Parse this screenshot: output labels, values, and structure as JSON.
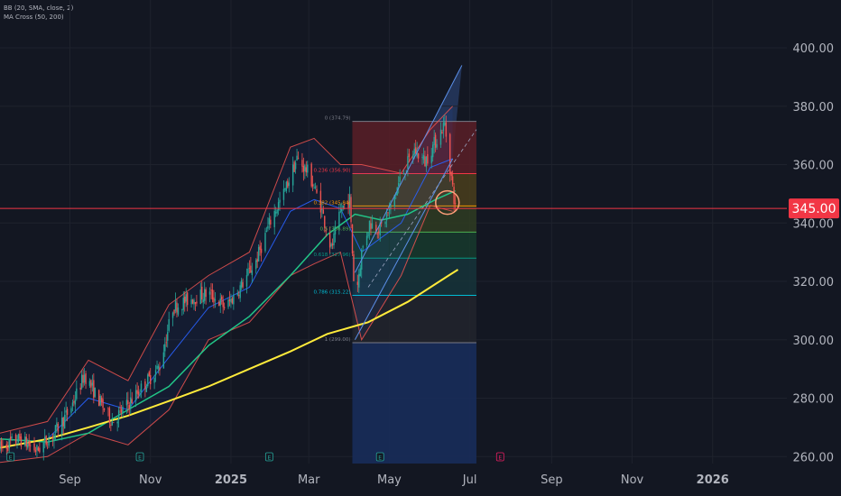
{
  "legend": {
    "line1": "BB (20, SMA, close, 2)",
    "line2": "MA Cross (50, 200)"
  },
  "chart_data": {
    "type": "candlestick",
    "title": "",
    "ylim": [
      257,
      412
    ],
    "x_range": [
      "2024-07-10",
      "2026-03-01"
    ],
    "y_ticks": [
      260,
      280,
      300,
      320,
      340,
      360,
      380,
      400
    ],
    "y_tick_labels": [
      "260.00",
      "280.00",
      "300.00",
      "320.00",
      "340.00",
      "360.00",
      "380.00",
      "400.00"
    ],
    "x_ticks": [
      {
        "date": "2024-09-01",
        "label": "Sep",
        "bold": false
      },
      {
        "date": "2024-11-01",
        "label": "Nov",
        "bold": false
      },
      {
        "date": "2025-01-01",
        "label": "2025",
        "bold": true
      },
      {
        "date": "2025-03-01",
        "label": "Mar",
        "bold": false
      },
      {
        "date": "2025-05-01",
        "label": "May",
        "bold": false
      },
      {
        "date": "2025-07-01",
        "label": "Jul",
        "bold": false
      },
      {
        "date": "2025-09-01",
        "label": "Sep",
        "bold": false
      },
      {
        "date": "2025-11-01",
        "label": "Nov",
        "bold": false
      },
      {
        "date": "2026-01-01",
        "label": "2026",
        "bold": true
      }
    ],
    "price_line": {
      "value": 345.0,
      "label": "345.00",
      "color": "#f23645"
    },
    "close_path": [
      [
        "2024-07-10",
        263
      ],
      [
        "2024-07-25",
        266
      ],
      [
        "2024-08-07",
        262
      ],
      [
        "2024-08-20",
        268
      ],
      [
        "2024-09-01",
        276
      ],
      [
        "2024-09-12",
        288
      ],
      [
        "2024-09-22",
        280
      ],
      [
        "2024-10-03",
        272
      ],
      [
        "2024-10-15",
        278
      ],
      [
        "2024-10-28",
        285
      ],
      [
        "2024-11-08",
        291
      ],
      [
        "2024-11-18",
        311
      ],
      [
        "2024-12-01",
        314
      ],
      [
        "2024-12-15",
        316
      ],
      [
        "2024-12-28",
        311
      ],
      [
        "2025-01-08",
        318
      ],
      [
        "2025-01-20",
        327
      ],
      [
        "2025-02-01",
        342
      ],
      [
        "2025-02-10",
        350
      ],
      [
        "2025-02-20",
        362
      ],
      [
        "2025-03-01",
        357
      ],
      [
        "2025-03-10",
        346
      ],
      [
        "2025-03-18",
        331
      ],
      [
        "2025-03-26",
        345
      ],
      [
        "2025-04-01",
        348
      ],
      [
        "2025-04-05",
        312
      ],
      [
        "2025-04-10",
        330
      ],
      [
        "2025-04-16",
        340
      ],
      [
        "2025-04-24",
        338
      ],
      [
        "2025-05-01",
        344
      ],
      [
        "2025-05-10",
        356
      ],
      [
        "2025-05-20",
        365
      ],
      [
        "2025-05-28",
        361
      ],
      [
        "2025-06-05",
        368
      ],
      [
        "2025-06-12",
        374
      ],
      [
        "2025-06-16",
        359
      ],
      [
        "2025-06-20",
        345
      ]
    ],
    "sma200": [
      [
        "2024-07-10",
        263
      ],
      [
        "2024-08-15",
        266
      ],
      [
        "2024-09-15",
        270
      ],
      [
        "2024-10-15",
        274
      ],
      [
        "2024-11-15",
        279
      ],
      [
        "2024-12-15",
        284
      ],
      [
        "2025-01-15",
        290
      ],
      [
        "2025-02-15",
        296
      ],
      [
        "2025-03-15",
        302
      ],
      [
        "2025-04-15",
        306
      ],
      [
        "2025-05-15",
        313
      ],
      [
        "2025-06-15",
        322
      ],
      [
        "2025-06-22",
        324
      ]
    ],
    "sma50": [
      [
        "2024-07-10",
        266
      ],
      [
        "2024-08-15",
        265
      ],
      [
        "2024-09-15",
        268
      ],
      [
        "2024-10-15",
        276
      ],
      [
        "2024-11-15",
        284
      ],
      [
        "2024-12-15",
        298
      ],
      [
        "2025-01-15",
        308
      ],
      [
        "2025-02-15",
        322
      ],
      [
        "2025-03-15",
        336
      ],
      [
        "2025-04-05",
        343
      ],
      [
        "2025-04-25",
        341
      ],
      [
        "2025-05-15",
        343
      ],
      [
        "2025-06-05",
        348
      ],
      [
        "2025-06-20",
        351
      ]
    ],
    "bb_upper": [
      [
        "2024-07-10",
        268
      ],
      [
        "2024-08-15",
        272
      ],
      [
        "2024-09-15",
        293
      ],
      [
        "2024-10-15",
        286
      ],
      [
        "2024-11-15",
        312
      ],
      [
        "2024-12-15",
        322
      ],
      [
        "2025-01-15",
        330
      ],
      [
        "2025-02-15",
        366
      ],
      [
        "2025-03-05",
        369
      ],
      [
        "2025-03-25",
        360
      ],
      [
        "2025-04-10",
        360
      ],
      [
        "2025-05-10",
        357
      ],
      [
        "2025-06-01",
        372
      ],
      [
        "2025-06-18",
        380
      ]
    ],
    "bb_lower": [
      [
        "2024-07-10",
        258
      ],
      [
        "2024-08-15",
        260
      ],
      [
        "2024-09-15",
        268
      ],
      [
        "2024-10-15",
        264
      ],
      [
        "2024-11-15",
        276
      ],
      [
        "2024-12-15",
        300
      ],
      [
        "2025-01-15",
        306
      ],
      [
        "2025-02-15",
        322
      ],
      [
        "2025-03-05",
        326
      ],
      [
        "2025-03-25",
        330
      ],
      [
        "2025-04-10",
        300
      ],
      [
        "2025-05-10",
        322
      ],
      [
        "2025-06-01",
        346
      ],
      [
        "2025-06-18",
        344
      ]
    ],
    "bb_basis": [
      [
        "2024-07-10",
        263
      ],
      [
        "2024-08-15",
        266
      ],
      [
        "2024-09-15",
        280
      ],
      [
        "2024-10-15",
        276
      ],
      [
        "2024-11-15",
        294
      ],
      [
        "2024-12-15",
        311
      ],
      [
        "2025-01-15",
        318
      ],
      [
        "2025-02-15",
        344
      ],
      [
        "2025-03-05",
        348
      ],
      [
        "2025-03-25",
        345
      ],
      [
        "2025-04-10",
        330
      ],
      [
        "2025-05-10",
        340
      ],
      [
        "2025-06-01",
        359
      ],
      [
        "2025-06-18",
        362
      ]
    ],
    "fibonacci": {
      "start": "2025-04-03",
      "end": "2025-07-06",
      "ext_end": "2025-07-06",
      "levels": [
        {
          "ratio": "0",
          "value": 374.79,
          "label": "0 (374.79)",
          "color": "#787b86",
          "fill": "#5b1f27"
        },
        {
          "ratio": "0.236",
          "value": 356.9,
          "label": "0.236 (356.90)",
          "color": "#f23645",
          "fill": "#4a3e1c"
        },
        {
          "ratio": "0.382",
          "value": 345.84,
          "label": "0.382 (345.84)",
          "color": "#ff9800",
          "fill": "#2f3c22"
        },
        {
          "ratio": "0.5",
          "value": 336.89,
          "label": "0.5 (336.89)",
          "color": "#4caf50",
          "fill": "#183a2d"
        },
        {
          "ratio": "0.618",
          "value": 327.96,
          "label": "0.618 (327.96)",
          "color": "#089981",
          "fill": "#16343a"
        },
        {
          "ratio": "0.786",
          "value": 315.22,
          "label": "0.786 (315.22)",
          "color": "#00bcd4",
          "fill": "#22252d"
        },
        {
          "ratio": "1",
          "value": 299.0,
          "label": "1 (299.00)",
          "color": "#787b86",
          "fill": null
        }
      ],
      "below_fill": "#182c5a"
    },
    "channel": {
      "lower_start": [
        "2025-04-05",
        300
      ],
      "lower_end": [
        "2025-06-18",
        362
      ],
      "upper_start": [
        "2025-04-05",
        323
      ],
      "upper_end": [
        "2025-06-25",
        394
      ],
      "color": "#5b8fe8"
    },
    "circle": {
      "date": "2025-06-14",
      "value": 347,
      "color": "#ff9f7a"
    },
    "earnings": [
      {
        "date": "2024-07-18",
        "label": "E",
        "color": "#26a69a"
      },
      {
        "date": "2024-10-24",
        "label": "E",
        "color": "#26a69a"
      },
      {
        "date": "2025-01-30",
        "label": "E",
        "color": "#26a69a"
      },
      {
        "date": "2025-04-24",
        "label": "E",
        "color": "#26a69a"
      },
      {
        "date": "2025-07-24",
        "label": "E",
        "color": "#e91e63"
      }
    ],
    "colors": {
      "up": "#26a69a",
      "down": "#ef5350",
      "sma200": "#ffeb3b",
      "sma50": "#22c587",
      "bb_band": "#ef5350",
      "bb_basis": "#2962ff",
      "grid": "#1e222d",
      "axis_text": "#b2b5be"
    }
  }
}
